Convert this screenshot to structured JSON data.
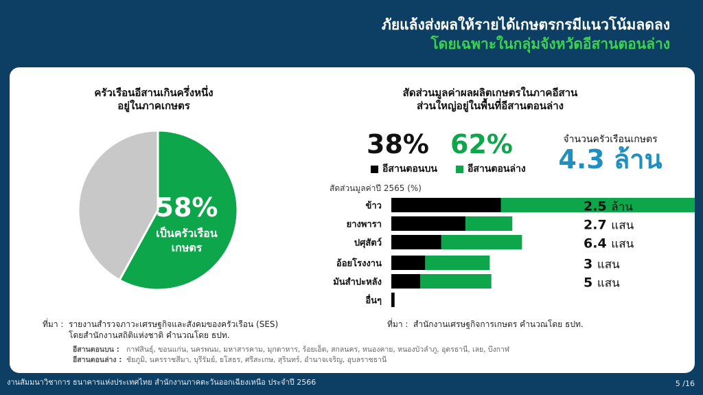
{
  "header": {
    "line1": "ภัยแล้งส่งผลให้รายได้เกษตรกรมีแนวโน้มลดลง",
    "line2": "โดยเฉพาะในกลุ่มจังหวัดอีสานตอนล่าง"
  },
  "left": {
    "title1": "ครัวเรือนอีสานเกินครึ่งหนึ่ง",
    "title2": "อยู่ในภาคเกษตร",
    "pie_percent_label": "58%",
    "pie_sub1": "เป็นครัวเรือน",
    "pie_sub2": "เกษตร"
  },
  "right": {
    "title1": "สัดส่วนมูลค่าผลผลิตเกษตรในภาคอีสาน",
    "title2": "ส่วนใหญ่อยู่ในพื้นที่อีสานตอนล่าง",
    "upper_pct": "38%",
    "lower_pct": "62%",
    "legend_upper": "อีสานตอนบน",
    "legend_lower": "อีสานตอนล่าง",
    "households_label": "จำนวนครัวเรือนเกษตร",
    "households_value": "4.3 ล้าน",
    "share_label": "สัดส่วนมูลค่าปี 2565 (%)"
  },
  "chart_data": [
    {
      "type": "pie",
      "labels": [
        "เป็นครัวเรือนเกษตร",
        ""
      ],
      "values": [
        58,
        42
      ],
      "colors": [
        "#0ea64a",
        "#c8c8c8"
      ]
    },
    {
      "type": "bar",
      "orientation": "horizontal",
      "stacked": true,
      "categories": [
        "ข้าว",
        "ยางพารา",
        "ปศุสัตว์",
        "อ้อยโรงงาน",
        "มันสำปะหลัง",
        "อื่นๆ"
      ],
      "series": [
        {
          "name": "อีสานตอนบน",
          "values": [
            34,
            23,
            15.5,
            10.5,
            9,
            1
          ],
          "color": "#000000"
        },
        {
          "name": "อีสานตอนล่าง",
          "values": [
            64.5,
            14.5,
            25,
            20,
            22,
            0
          ],
          "color": "#0ea64a"
        }
      ],
      "xlim": [
        0,
        100
      ],
      "value_labels": [
        {
          "num": "2.5",
          "unit": "ล้าน"
        },
        {
          "num": "2.7",
          "unit": "แสน"
        },
        {
          "num": "6.4",
          "unit": "แสน"
        },
        {
          "num": "3",
          "unit": "แสน"
        },
        {
          "num": "5",
          "unit": "แสน"
        }
      ]
    }
  ],
  "sources": {
    "left_prefix": "ที่มา :",
    "left_line1": "รายงานสำรวจภาวะเศรษฐกิจและสังคมของครัวเรือน (SES)",
    "left_line2": "โดยสำนักงานสถิติแห่งชาติ คำนวณโดย ธปท.",
    "right_prefix": "ที่มา :",
    "right_line1": "สำนักงานเศรษฐกิจการเกษตร คำนวณโดย ธปท."
  },
  "notes": {
    "upper_key": "อีสานตอนบน :",
    "upper_provinces": "กาฬสินธุ์, ขอนแก่น, นครพนม, มหาสารคาม, มุกดาหาร, ร้อยเอ็ด, สกลนคร, หนองคาย, หนองบัวลำภู, อุดรธานี, เลย, บึงกาฬ",
    "lower_key": "อีสานตอนล่าง :",
    "lower_provinces": "ชัยภูมิ, นครราชสีมา, บุรีรัมย์, ยโสธร, ศรีสะเกษ, สุรินทร์, อำนาจเจริญ, อุบลราชธานี"
  },
  "footer": {
    "text": "งานสัมมนาวิชาการ ธนาคารแห่งประเทศไทย สำนักงานภาคตะวันออกเฉียงเหนือ ประจำปี 2566",
    "page": "5 /16"
  }
}
